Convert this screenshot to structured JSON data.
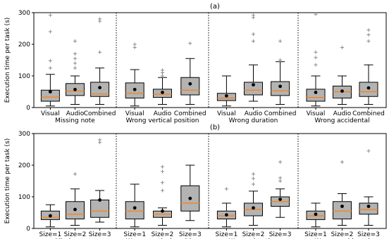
{
  "chart_data": [
    {
      "type": "box",
      "title": "(a)",
      "ylabel": "Execution time per task (s)",
      "ylim": [
        0,
        300
      ],
      "yticks": [
        0,
        100,
        200,
        300
      ],
      "grid": false,
      "groups": [
        {
          "name": "Missing note",
          "boxes": [
            {
              "category": "Visual",
              "whisker_low": 5,
              "q1": 20,
              "median": 33,
              "q3": 55,
              "whisker_high": 105,
              "mean": 50,
              "outliers": [
                125,
                148,
                240,
                292
              ]
            },
            {
              "category": "Audio",
              "whisker_low": 10,
              "q1": 38,
              "median": 52,
              "q3": 76,
              "whisker_high": 100,
              "mean": 57,
              "outliers": [
                125,
                140,
                155,
                170,
                210
              ]
            },
            {
              "category": "Combined",
              "whisker_low": 10,
              "q1": 35,
              "median": 43,
              "q3": 80,
              "whisker_high": 125,
              "mean": 63,
              "outliers": [
                175,
                273,
                280
              ]
            }
          ]
        },
        {
          "name": "Wrong vertical position",
          "boxes": [
            {
              "category": "Visual",
              "whisker_low": 5,
              "q1": 30,
              "median": 45,
              "q3": 78,
              "whisker_high": 120,
              "mean": 57,
              "outliers": [
                190,
                200
              ]
            },
            {
              "category": "Audio",
              "whisker_low": 10,
              "q1": 32,
              "median": 42,
              "q3": 58,
              "whisker_high": 95,
              "mean": 48,
              "outliers": [
                100,
                110,
                118
              ]
            },
            {
              "category": "Combined",
              "whisker_low": 10,
              "q1": 40,
              "median": 55,
              "q3": 95,
              "whisker_high": 155,
              "mean": 75,
              "outliers": [
                203
              ]
            }
          ]
        },
        {
          "name": "Wrong duration",
          "boxes": [
            {
              "category": "Visual",
              "whisker_low": 5,
              "q1": 22,
              "median": 30,
              "q3": 45,
              "whisker_high": 100,
              "mean": 37,
              "outliers": []
            },
            {
              "category": "Audio",
              "whisker_low": 20,
              "q1": 40,
              "median": 55,
              "q3": 80,
              "whisker_high": 135,
              "mean": 72,
              "outliers": [
                210,
                232,
                285,
                292
              ]
            },
            {
              "category": "Combined",
              "whisker_low": 10,
              "q1": 38,
              "median": 53,
              "q3": 82,
              "whisker_high": 145,
              "mean": 67,
              "outliers": [
                150,
                210
              ]
            }
          ]
        },
        {
          "name": "Wrong accidental",
          "boxes": [
            {
              "category": "Visual",
              "whisker_low": 5,
              "q1": 20,
              "median": 32,
              "q3": 58,
              "whisker_high": 100,
              "mean": 48,
              "outliers": [
                135,
                158,
                175,
                295
              ]
            },
            {
              "category": "Audio",
              "whisker_low": 10,
              "q1": 30,
              "median": 50,
              "q3": 68,
              "whisker_high": 100,
              "mean": 52,
              "outliers": [
                190
              ]
            },
            {
              "category": "Combined",
              "whisker_low": 10,
              "q1": 35,
              "median": 50,
              "q3": 80,
              "whisker_high": 135,
              "mean": 62,
              "outliers": [
                210,
                230,
                245
              ]
            }
          ]
        }
      ]
    },
    {
      "type": "box",
      "title": "(b)",
      "ylabel": "Execution time per task (s)",
      "ylim": [
        0,
        300
      ],
      "yticks": [
        0,
        100,
        200,
        300
      ],
      "grid": false,
      "groups": [
        {
          "name": "Missing note",
          "boxes": [
            {
              "category": "Size=1",
              "whisker_low": 5,
              "q1": 28,
              "median": 35,
              "q3": 55,
              "whisker_high": 75,
              "mean": 40,
              "outliers": []
            },
            {
              "category": "Size=2",
              "whisker_low": 10,
              "q1": 30,
              "median": 45,
              "q3": 85,
              "whisker_high": 125,
              "mean": 60,
              "outliers": [
                172
              ]
            },
            {
              "category": "Size=3",
              "whisker_low": 20,
              "q1": 35,
              "median": 55,
              "q3": 90,
              "whisker_high": 120,
              "mean": 90,
              "outliers": [
                272,
                280
              ]
            }
          ]
        },
        {
          "name": "Wrong vertical position",
          "boxes": [
            {
              "category": "Size=1",
              "whisker_low": 5,
              "q1": 30,
              "median": 55,
              "q3": 85,
              "whisker_high": 140,
              "mean": 65,
              "outliers": []
            },
            {
              "category": "Size=2",
              "whisker_low": 10,
              "q1": 35,
              "median": 45,
              "q3": 55,
              "whisker_high": 65,
              "mean": 55,
              "outliers": [
                120,
                145,
                180,
                195
              ]
            },
            {
              "category": "Size=3",
              "whisker_low": 25,
              "q1": 55,
              "median": 80,
              "q3": 135,
              "whisker_high": 200,
              "mean": 95,
              "outliers": []
            }
          ]
        },
        {
          "name": "Wrong duration",
          "boxes": [
            {
              "category": "Size=1",
              "whisker_low": 5,
              "q1": 30,
              "median": 40,
              "q3": 55,
              "whisker_high": 80,
              "mean": 43,
              "outliers": [
                125
              ]
            },
            {
              "category": "Size=2",
              "whisker_low": 10,
              "q1": 40,
              "median": 60,
              "q3": 80,
              "whisker_high": 118,
              "mean": 65,
              "outliers": [
                140,
                158,
                172
              ]
            },
            {
              "category": "Size=3",
              "whisker_low": 35,
              "q1": 70,
              "median": 85,
              "q3": 100,
              "whisker_high": 125,
              "mean": 92,
              "outliers": [
                150,
                160,
                210
              ]
            }
          ]
        },
        {
          "name": "Wrong accidental",
          "boxes": [
            {
              "category": "Size=1",
              "whisker_low": 5,
              "q1": 28,
              "median": 40,
              "q3": 55,
              "whisker_high": 80,
              "mean": 45,
              "outliers": []
            },
            {
              "category": "Size=2",
              "whisker_low": 10,
              "q1": 30,
              "median": 55,
              "q3": 85,
              "whisker_high": 110,
              "mean": 70,
              "outliers": [
                210
              ]
            },
            {
              "category": "Size=3",
              "whisker_low": 10,
              "q1": 45,
              "median": 60,
              "q3": 80,
              "whisker_high": 100,
              "mean": 70,
              "outliers": [
                245
              ]
            }
          ]
        }
      ]
    }
  ],
  "colors": {
    "box_fill": "#b3b3b3",
    "median": "#ff7f0e",
    "mean_marker": "#000000",
    "outlier": "#8c8c8c",
    "axes": "#000000"
  }
}
